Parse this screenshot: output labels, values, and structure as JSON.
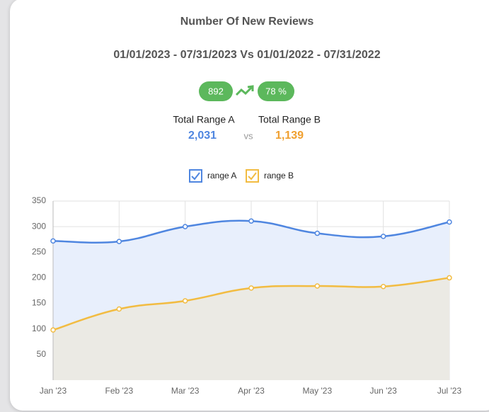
{
  "chart_data": {
    "type": "line",
    "title": "Number Of New Reviews",
    "subtitle": "01/01/2023 - 07/31/2023 Vs 01/01/2022 - 07/31/2022",
    "categories": [
      "Jan '23",
      "Feb '23",
      "Mar '23",
      "Apr '23",
      "May '23",
      "Jun '23",
      "Jul '23"
    ],
    "series": [
      {
        "name": "range A",
        "color": "#4f86e0",
        "fill": "#e8effc",
        "values": [
          272,
          271,
          300,
          311,
          287,
          281,
          309
        ]
      },
      {
        "name": "range B",
        "color": "#f2bc42",
        "fill": "#ebeae4",
        "values": [
          98,
          139,
          155,
          180,
          184,
          183,
          200
        ]
      }
    ],
    "ylim": [
      0,
      350
    ],
    "yticks": [
      50,
      100,
      150,
      200,
      250,
      300,
      350
    ],
    "grid": true,
    "legend": "top"
  },
  "summary": {
    "count": "892",
    "change": "78 %",
    "range_a_label": "Total Range A",
    "range_a_total": "2,031",
    "vs": "vs",
    "range_b_label": "Total Range B",
    "range_b_total": "1,139"
  }
}
